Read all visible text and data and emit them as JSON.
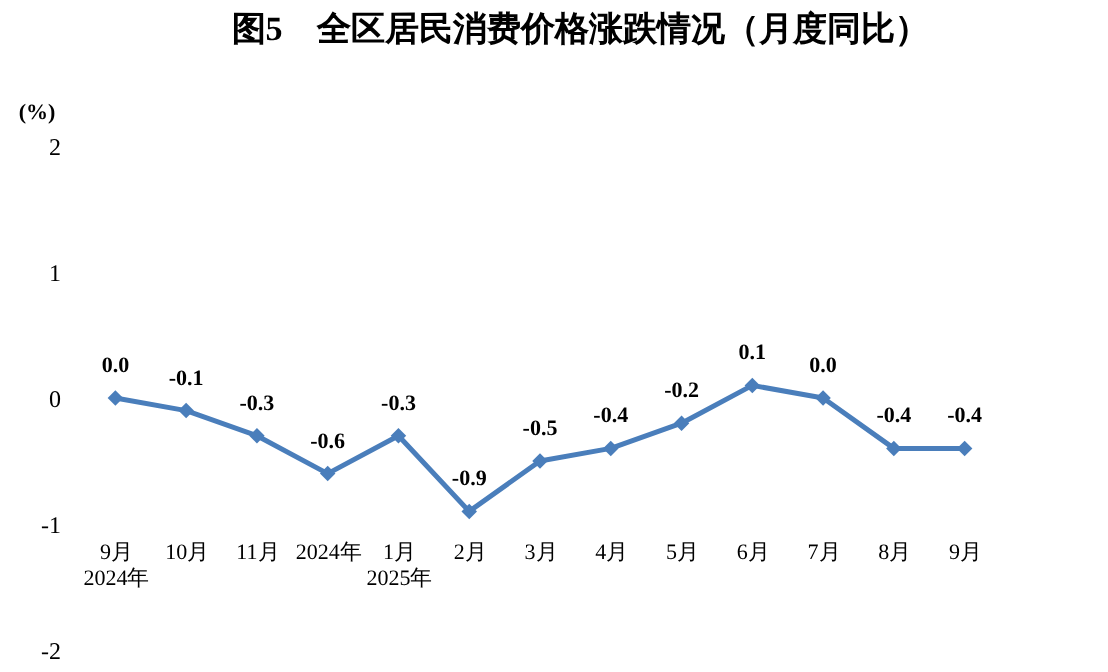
{
  "chart_data": {
    "type": "line",
    "title": "图5　全区居民消费价格涨跌情况（月度同比）",
    "ylabel": "(%)",
    "categories": [
      "9月\n2024年",
      "10月",
      "11月",
      "2024年",
      "1月\n2025年",
      "2月",
      "3月",
      "4月",
      "5月",
      "6月",
      "7月",
      "8月",
      "9月"
    ],
    "series": [
      {
        "color": "#4a7ebb",
        "values": [
          0.0,
          -0.1,
          -0.3,
          -0.6,
          -0.3,
          -0.9,
          -0.5,
          -0.4,
          -0.2,
          0.1,
          0.0,
          -0.4,
          -0.4
        ],
        "value_labels": [
          "0.0",
          "-0.1",
          "-0.3",
          "-0.6",
          "-0.3",
          "-0.9",
          "-0.5",
          "-0.4",
          "-0.2",
          "0.1",
          "0.0",
          "-0.4",
          "-0.4"
        ]
      }
    ],
    "ylim": [
      -2,
      2
    ],
    "yticks": [
      -2,
      -1,
      0,
      1,
      2
    ],
    "grid": false,
    "legend": false,
    "marker": "diamond",
    "line_style": "solid"
  }
}
